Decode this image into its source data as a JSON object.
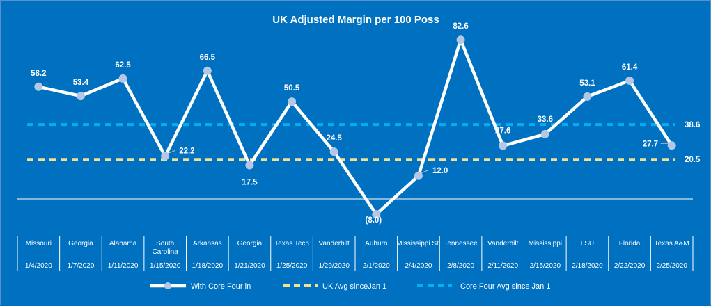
{
  "chart_data": {
    "type": "line",
    "title": "UK Adjusted Margin per 100 Poss",
    "categories": [
      {
        "opponent": [
          "Missouri"
        ],
        "date": "1/4/2020"
      },
      {
        "opponent": [
          "Georgia"
        ],
        "date": "1/7/2020"
      },
      {
        "opponent": [
          "Alabama"
        ],
        "date": "1/11/2020"
      },
      {
        "opponent": [
          "South",
          "Carolina"
        ],
        "date": "1/15/2020"
      },
      {
        "opponent": [
          "Arkansas"
        ],
        "date": "1/18/2020"
      },
      {
        "opponent": [
          "Georgia"
        ],
        "date": "1/21/2020"
      },
      {
        "opponent": [
          "Texas Tech"
        ],
        "date": "1/25/2020"
      },
      {
        "opponent": [
          "Vanderbilt"
        ],
        "date": "1/29/2020"
      },
      {
        "opponent": [
          "Auburn"
        ],
        "date": "2/1/2020"
      },
      {
        "opponent": [
          "Mississippi St."
        ],
        "date": "2/4/2020"
      },
      {
        "opponent": [
          "Tennessee"
        ],
        "date": "2/8/2020"
      },
      {
        "opponent": [
          "Vanderbilt"
        ],
        "date": "2/11/2020"
      },
      {
        "opponent": [
          "Mississippi"
        ],
        "date": "2/15/2020"
      },
      {
        "opponent": [
          "LSU"
        ],
        "date": "2/18/2020"
      },
      {
        "opponent": [
          "Florida"
        ],
        "date": "2/22/2020"
      },
      {
        "opponent": [
          "Texas A&M"
        ],
        "date": "2/25/2020"
      }
    ],
    "series": [
      {
        "name": "With Core Four in",
        "values": [
          58.2,
          53.4,
          62.5,
          22.2,
          66.5,
          17.5,
          50.5,
          24.5,
          -8.0,
          12.0,
          82.6,
          27.6,
          33.6,
          53.1,
          61.4,
          27.7
        ],
        "labels": [
          "58.2",
          "53.4",
          "62.5",
          "22.2",
          "66.5",
          "17.5",
          "50.5",
          "24.5",
          "(8.0)",
          "12.0",
          "82.6",
          "27.6",
          "33.6",
          "53.1",
          "61.4",
          "27.7"
        ],
        "color": "#ffffff",
        "marker_color": "#b4c7e7"
      },
      {
        "name": "UK Avg sinceJan 1",
        "value": 20.5,
        "label": "20.5",
        "color": "#f5e08f",
        "style": "dashed"
      },
      {
        "name": "Core Four Avg since Jan 1",
        "value": 38.6,
        "label": "38.6",
        "color": "#00b0f0",
        "style": "dashed"
      }
    ],
    "ylim": [
      -15,
      95
    ],
    "grid": false,
    "legend_position": "bottom",
    "background": "#0070C0"
  }
}
